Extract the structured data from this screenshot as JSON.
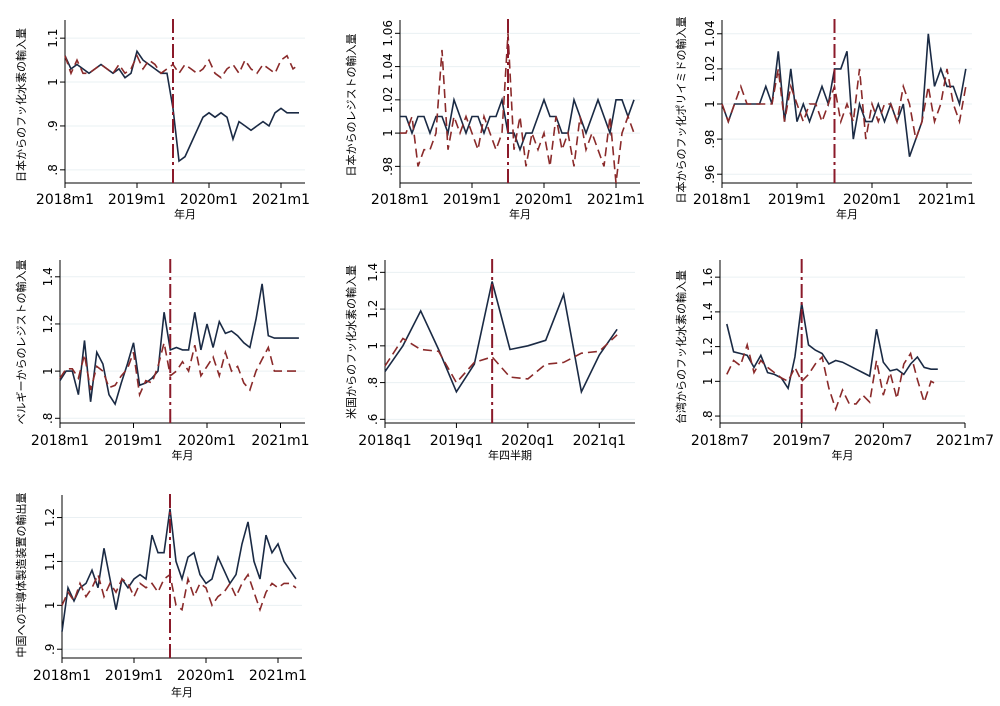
{
  "chart_data": [
    {
      "type": "line",
      "ylabel": "日本からのフッ化水素の輸入量",
      "xlabel": "年月",
      "xticks": [
        "2018m1",
        "2019m1",
        "2020m1",
        "2021m1"
      ],
      "yticks": [
        ".8",
        ".9",
        "1",
        "1.1"
      ],
      "xlim": [
        0,
        40
      ],
      "ylim": [
        0.77,
        1.13
      ],
      "vline_x": 18,
      "series": [
        {
          "values": [
            1.06,
            1.03,
            1.04,
            1.03,
            1.02,
            1.03,
            1.04,
            1.03,
            1.02,
            1.03,
            1.01,
            1.02,
            1.07,
            1.05,
            1.04,
            1.03,
            1.02,
            1.02,
            0.94,
            0.82,
            0.83,
            0.86,
            0.89,
            0.92,
            0.93,
            0.92,
            0.93,
            0.92,
            0.87,
            0.91,
            0.9,
            0.89,
            0.9,
            0.91,
            0.9,
            0.93,
            0.94,
            0.93,
            0.93,
            0.93
          ]
        },
        {
          "values": [
            1.06,
            1.02,
            1.05,
            1.02,
            1.02,
            1.03,
            1.04,
            1.03,
            1.02,
            1.04,
            1.02,
            1.03,
            1.06,
            1.03,
            1.05,
            1.04,
            1.02,
            1.03,
            1.04,
            1.02,
            1.04,
            1.03,
            1.02,
            1.03,
            1.05,
            1.02,
            1.01,
            1.03,
            1.04,
            1.02,
            1.05,
            1.03,
            1.02,
            1.04,
            1.03,
            1.02,
            1.05,
            1.06,
            1.03,
            1.04
          ]
        }
      ]
    },
    {
      "type": "line",
      "ylabel": "日本からのレジストの輸入量",
      "xlabel": "年月",
      "xticks": [
        "2018m1",
        "2019m1",
        "2020m1",
        "2021m1"
      ],
      "yticks": [
        ".98",
        "1",
        "1.02",
        "1.04",
        "1.06"
      ],
      "xlim": [
        0,
        40
      ],
      "ylim": [
        0.97,
        1.065
      ],
      "vline_x": 18,
      "series": [
        {
          "values": [
            1.01,
            1.01,
            1.0,
            1.01,
            1.01,
            1.0,
            1.01,
            1.01,
            1.0,
            1.02,
            1.01,
            1.0,
            1.01,
            1.01,
            1.0,
            1.01,
            1.01,
            1.02,
            1.0,
            1.0,
            0.99,
            1.0,
            1.0,
            1.01,
            1.02,
            1.01,
            1.01,
            1.0,
            1.0,
            1.02,
            1.01,
            1.0,
            1.01,
            1.02,
            1.01,
            1.0,
            1.02,
            1.02,
            1.01,
            1.02
          ]
        },
        {
          "values": [
            1.0,
            1.0,
            1.01,
            0.98,
            0.99,
            0.99,
            1.0,
            1.05,
            0.99,
            1.01,
            1.0,
            1.01,
            1.0,
            0.99,
            1.01,
            1.0,
            0.99,
            1.0,
            1.06,
            0.99,
            1.01,
            0.98,
            1.0,
            0.99,
            1.0,
            0.98,
            1.01,
            0.99,
            1.0,
            0.98,
            1.01,
            0.99,
            1.0,
            0.99,
            0.98,
            1.01,
            0.97,
            1.0,
            1.01,
            1.0
          ]
        }
      ]
    },
    {
      "type": "line",
      "ylabel": "日本からのフッ化ポリイミドの輸入量",
      "xlabel": "年月",
      "xticks": [
        "2018m1",
        "2019m1",
        "2020m1",
        "2021m1"
      ],
      "yticks": [
        ".96",
        ".98",
        "1",
        "1.02",
        "1.04"
      ],
      "xlim": [
        0,
        40
      ],
      "ylim": [
        0.955,
        1.045
      ],
      "vline_x": 18,
      "series": [
        {
          "values": [
            1.0,
            0.99,
            1.0,
            1.0,
            1.0,
            1.0,
            1.0,
            1.01,
            1.0,
            1.03,
            0.99,
            1.02,
            0.99,
            1.0,
            0.99,
            1.0,
            1.01,
            1.0,
            1.02,
            1.02,
            1.03,
            0.98,
            1.0,
            0.99,
            0.99,
            1.0,
            0.99,
            1.0,
            0.99,
            1.0,
            0.97,
            0.98,
            0.99,
            1.04,
            1.01,
            1.02,
            1.01,
            1.01,
            1.0,
            1.02
          ]
        },
        {
          "values": [
            1.0,
            0.99,
            1.0,
            1.01,
            1.0,
            1.0,
            1.0,
            1.0,
            1.0,
            1.02,
            0.99,
            1.01,
            1.0,
            0.99,
            1.0,
            1.0,
            0.99,
            1.0,
            1.01,
            0.99,
            1.0,
            0.99,
            1.02,
            0.98,
            1.0,
            0.99,
            1.0,
            1.0,
            0.99,
            1.01,
            1.0,
            0.98,
            0.99,
            1.01,
            0.99,
            1.0,
            1.02,
            1.0,
            0.99,
            1.01
          ]
        }
      ]
    },
    {
      "type": "line",
      "ylabel": "ベルギーからのレジストの輸入量",
      "xlabel": "年月",
      "xticks": [
        "2018m1",
        "2019m1",
        "2020m1",
        "2021m1"
      ],
      "yticks": [
        ".8",
        "1",
        "1.2",
        "1.4"
      ],
      "xlim": [
        0,
        40
      ],
      "ylim": [
        0.78,
        1.45
      ],
      "vline_x": 18,
      "series": [
        {
          "values": [
            0.96,
            1.0,
            1.0,
            0.9,
            1.13,
            0.87,
            1.08,
            1.03,
            0.9,
            0.86,
            0.95,
            1.03,
            1.12,
            0.94,
            0.95,
            0.97,
            1.0,
            1.25,
            1.09,
            1.1,
            1.09,
            1.09,
            1.25,
            1.09,
            1.2,
            1.1,
            1.21,
            1.16,
            1.17,
            1.15,
            1.12,
            1.1,
            1.22,
            1.37,
            1.15,
            1.14,
            1.14,
            1.14,
            1.14,
            1.14
          ]
        },
        {
          "values": [
            0.97,
            1.01,
            1.01,
            0.97,
            1.07,
            0.92,
            1.02,
            1.0,
            0.93,
            0.94,
            0.98,
            1.01,
            1.08,
            0.9,
            0.96,
            0.95,
            1.02,
            1.12,
            0.98,
            1.0,
            1.04,
            1.0,
            1.11,
            0.98,
            1.02,
            1.06,
            0.98,
            1.08,
            1.0,
            1.02,
            0.95,
            0.92,
            1.0,
            1.05,
            1.1,
            1.0,
            1.0,
            1.0,
            1.0,
            1.0
          ]
        }
      ]
    },
    {
      "type": "line",
      "ylabel": "米国からのフッ化水素の輸入量",
      "xlabel": "年四半期",
      "xticks": [
        "2018q1",
        "2019q1",
        "2020q1",
        "2021q1"
      ],
      "yticks": [
        ".6",
        ".8",
        "1",
        "1.2",
        "1.4"
      ],
      "xlim": [
        0,
        14
      ],
      "ylim": [
        0.58,
        1.44
      ],
      "vline_x": 6,
      "series": [
        {
          "x": [
            0,
            1,
            2,
            3,
            4,
            5,
            6,
            7,
            8,
            9,
            10,
            11,
            12,
            13
          ],
          "values": [
            0.86,
            1.0,
            1.19,
            0.98,
            0.75,
            0.9,
            1.35,
            0.98,
            1.0,
            1.03,
            1.28,
            0.75,
            0.95,
            1.09
          ]
        },
        {
          "x": [
            0,
            1,
            2,
            3,
            4,
            5,
            6,
            7,
            8,
            9,
            10,
            11,
            12,
            13
          ],
          "values": [
            0.89,
            1.04,
            0.98,
            0.97,
            0.8,
            0.91,
            0.94,
            0.83,
            0.82,
            0.9,
            0.91,
            0.96,
            0.97,
            1.06
          ]
        }
      ]
    },
    {
      "type": "line",
      "ylabel": "台湾からのフッ化水素の輸入量",
      "xlabel": "年月",
      "xticks": [
        "2018m7",
        "2019m7",
        "2020m7",
        "2021m7"
      ],
      "yticks": [
        ".8",
        "1",
        "1.2",
        "1.4",
        "1.6"
      ],
      "xlim": [
        0,
        36
      ],
      "ylim": [
        0.76,
        1.67
      ],
      "vline_x": 12,
      "series": [
        {
          "x": [
            1,
            2,
            3,
            4,
            5,
            6,
            7,
            8,
            9,
            10,
            11,
            12,
            13,
            14,
            15,
            16,
            17,
            18,
            19,
            20,
            21,
            22,
            23,
            24,
            25,
            26,
            27,
            28,
            29,
            30,
            31,
            32
          ],
          "values": [
            1.33,
            1.17,
            1.16,
            1.15,
            1.08,
            1.15,
            1.05,
            1.04,
            1.02,
            0.96,
            1.14,
            1.45,
            1.21,
            1.18,
            1.16,
            1.1,
            1.12,
            1.11,
            1.09,
            1.07,
            1.05,
            1.03,
            1.3,
            1.11,
            1.06,
            1.07,
            1.04,
            1.1,
            1.14,
            1.08,
            1.07,
            1.07
          ]
        },
        {
          "x": [
            1,
            2,
            3,
            4,
            5,
            6,
            7,
            8,
            9,
            10,
            11,
            12,
            13,
            14,
            15,
            16,
            17,
            18,
            19,
            20,
            21,
            22,
            23,
            24,
            25,
            26,
            27,
            28,
            29,
            30,
            31,
            32
          ],
          "values": [
            1.04,
            1.12,
            1.09,
            1.21,
            1.05,
            1.12,
            1.08,
            1.05,
            1.02,
            1.0,
            1.08,
            1.0,
            1.04,
            1.1,
            1.14,
            0.96,
            0.84,
            0.95,
            0.87,
            0.87,
            0.92,
            0.88,
            1.12,
            0.92,
            1.05,
            0.9,
            1.1,
            1.16,
            1.01,
            0.88,
            1.0,
            0.98
          ]
        }
      ]
    },
    {
      "type": "line",
      "ylabel": "中国への半導体製造装置の輸出量",
      "xlabel": "年月",
      "xticks": [
        "2018m1",
        "2019m1",
        "2020m1",
        "2021m1"
      ],
      "yticks": [
        ".9",
        "1",
        "1.1",
        "1.2"
      ],
      "xlim": [
        0,
        40
      ],
      "ylim": [
        0.88,
        1.24
      ],
      "vline_x": 18,
      "series": [
        {
          "values": [
            0.94,
            1.04,
            1.01,
            1.04,
            1.05,
            1.08,
            1.04,
            1.13,
            1.06,
            0.99,
            1.06,
            1.04,
            1.06,
            1.07,
            1.06,
            1.16,
            1.12,
            1.12,
            1.22,
            1.1,
            1.06,
            1.11,
            1.12,
            1.07,
            1.05,
            1.06,
            1.11,
            1.08,
            1.05,
            1.07,
            1.14,
            1.19,
            1.1,
            1.06,
            1.16,
            1.12,
            1.14,
            1.1,
            1.08,
            1.06
          ]
        },
        {
          "values": [
            1.0,
            1.03,
            1.01,
            1.05,
            1.02,
            1.04,
            1.07,
            1.02,
            1.05,
            1.03,
            1.06,
            1.05,
            1.02,
            1.05,
            1.04,
            1.05,
            1.03,
            1.06,
            1.07,
            1.0,
            0.99,
            1.06,
            1.02,
            1.05,
            1.04,
            1.0,
            1.02,
            1.03,
            1.05,
            1.02,
            1.05,
            1.07,
            1.03,
            0.99,
            1.03,
            1.05,
            1.04,
            1.05,
            1.05,
            1.04
          ]
        }
      ]
    }
  ]
}
